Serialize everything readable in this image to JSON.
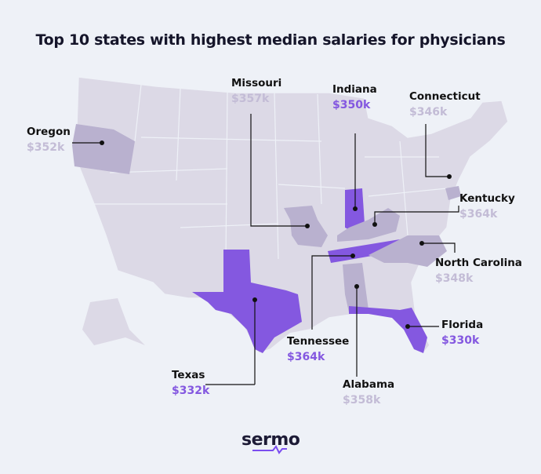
{
  "title": "Top 10 states with highest median salaries for physicians",
  "colors": {
    "background": "#eef1f7",
    "state_base": "#dcd9e6",
    "highlight_light": "#b9b1cf",
    "highlight_purple": "#8458e0",
    "value_gray": "#c3bcd6"
  },
  "states": [
    {
      "name": "Missouri",
      "salary": "$357k",
      "style": "light"
    },
    {
      "name": "Indiana",
      "salary": "$350k",
      "style": "purple"
    },
    {
      "name": "Connecticut",
      "salary": "$346k",
      "style": "light"
    },
    {
      "name": "Oregon",
      "salary": "$352k",
      "style": "light"
    },
    {
      "name": "Kentucky",
      "salary": "$364k",
      "style": "light"
    },
    {
      "name": "North Carolina",
      "salary": "$348k",
      "style": "light"
    },
    {
      "name": "Florida",
      "salary": "$330k",
      "style": "purple"
    },
    {
      "name": "Tennessee",
      "salary": "$364k",
      "style": "purple"
    },
    {
      "name": "Alabama",
      "salary": "$358k",
      "style": "light"
    },
    {
      "name": "Texas",
      "salary": "$332k",
      "style": "purple"
    }
  ],
  "logo": "sermo"
}
